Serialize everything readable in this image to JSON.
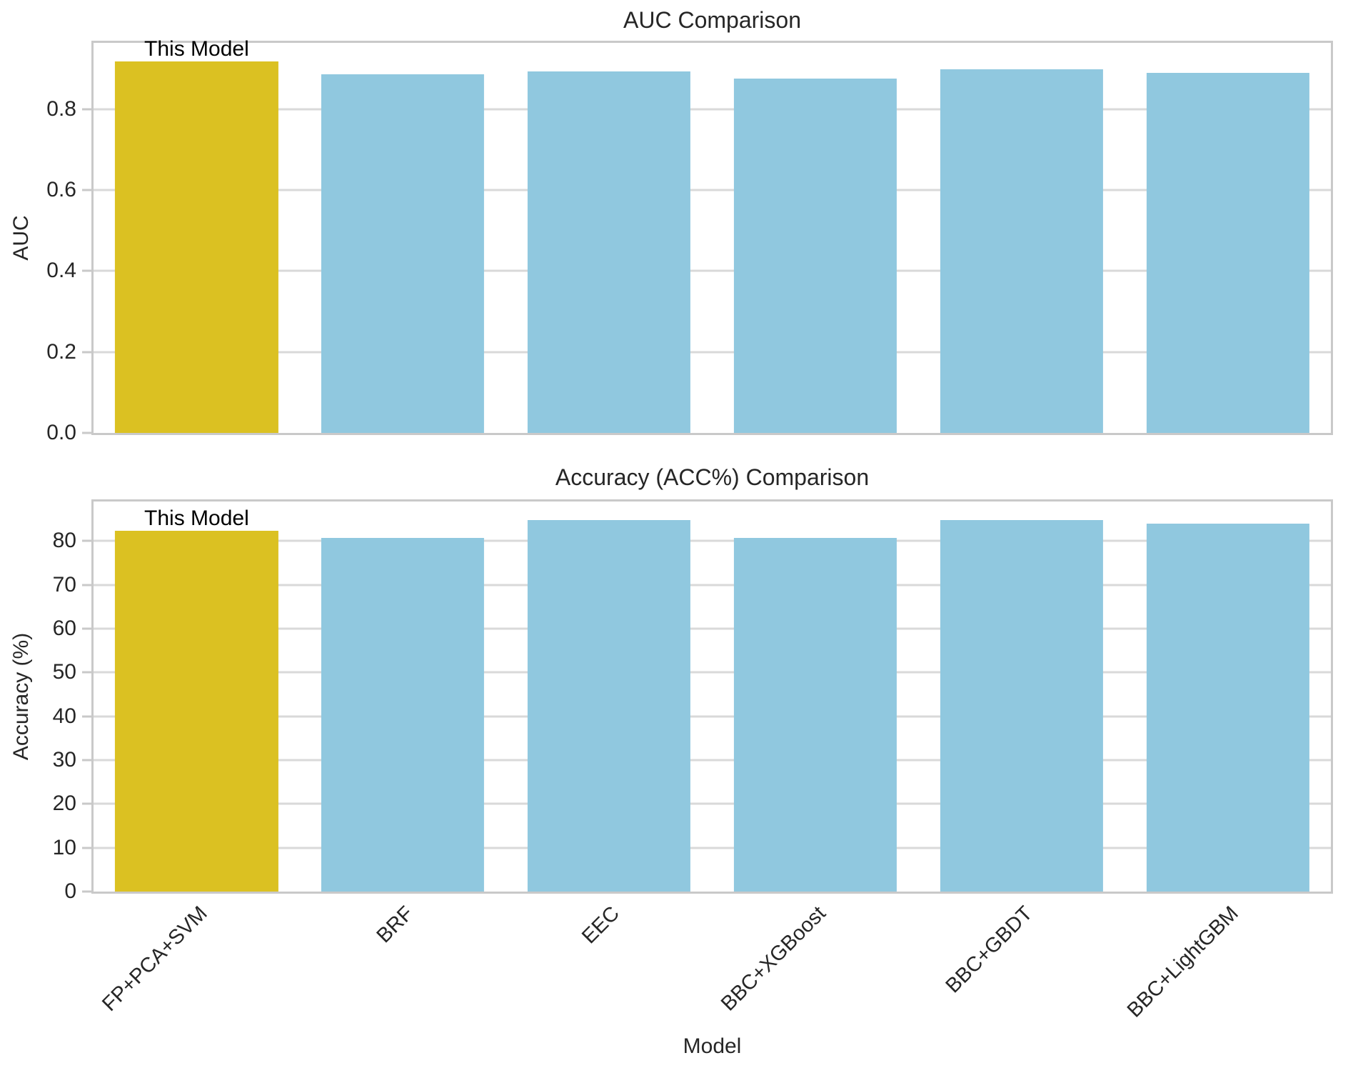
{
  "figure": {
    "background": "#ffffff"
  },
  "colors": {
    "highlight_bar": "#dbc122",
    "default_bar": "#90c8df",
    "gridline": "#d9d9d9",
    "spine": "#c9c9c9",
    "text": "#262626",
    "annotation_text": "#000000"
  },
  "categories": [
    "FP+PCA+SVM",
    "BRF",
    "EEC",
    "BBC+XGBoost",
    "BBC+GBDT",
    "BBC+LightGBM"
  ],
  "chart_data": [
    {
      "type": "bar",
      "title": "AUC Comparison",
      "xlabel": "",
      "ylabel": "AUC",
      "categories": [
        "FP+PCA+SVM",
        "BRF",
        "EEC",
        "BBC+XGBoost",
        "BBC+GBDT",
        "BBC+LightGBM"
      ],
      "values": [
        0.918,
        0.887,
        0.894,
        0.876,
        0.898,
        0.89
      ],
      "ylim": [
        0,
        0.964
      ],
      "yticks": [
        0,
        0.2,
        0.4,
        0.6,
        0.8
      ],
      "ytick_labels": [
        "0.0",
        "0.2",
        "0.4",
        "0.6",
        "0.8"
      ],
      "grid": "horizontal",
      "legend": "none",
      "show_xticklabels": false,
      "highlight_index": 0,
      "annotation": {
        "text": "This Model",
        "bar_index": 0
      }
    },
    {
      "type": "bar",
      "title": "Accuracy (ACC%) Comparison",
      "xlabel": "Model",
      "ylabel": "Accuracy (%)",
      "categories": [
        "FP+PCA+SVM",
        "BRF",
        "EEC",
        "BBC+XGBoost",
        "BBC+GBDT",
        "BBC+LightGBM"
      ],
      "values": [
        82.3,
        80.7,
        84.8,
        80.7,
        84.8,
        84.0
      ],
      "ylim": [
        0,
        89
      ],
      "yticks": [
        0,
        10,
        20,
        30,
        40,
        50,
        60,
        70,
        80
      ],
      "ytick_labels": [
        "0",
        "10",
        "20",
        "30",
        "40",
        "50",
        "60",
        "70",
        "80"
      ],
      "grid": "horizontal",
      "legend": "none",
      "show_xticklabels": true,
      "highlight_index": 0,
      "annotation": {
        "text": "This Model",
        "bar_index": 0
      }
    }
  ]
}
